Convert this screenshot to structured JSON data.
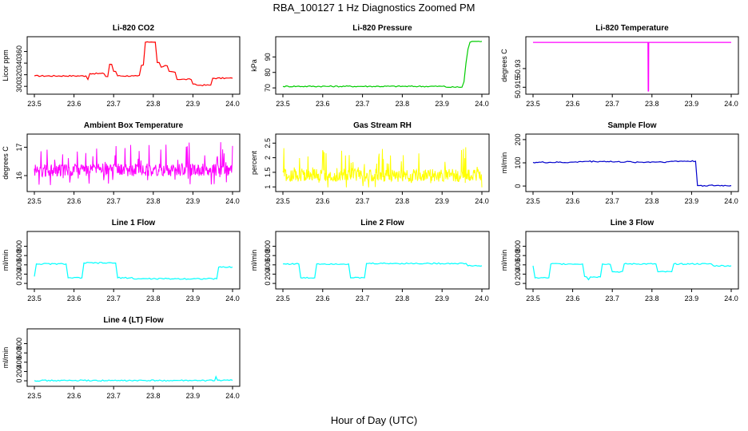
{
  "title": "RBA_100127  1 Hz Diagnostics Zoomed PM",
  "xlabel": "Hour of Day (UTC)",
  "colors": {
    "red": "#ff0000",
    "green": "#00cc00",
    "magenta": "#ff00ff",
    "yellow": "#ffff00",
    "blue": "#0000cc",
    "cyan": "#00ffff"
  },
  "chart_data": [
    {
      "type": "line",
      "title": "Li-820 CO2",
      "ylabel": "Licor ppm",
      "color": "red",
      "xlim": [
        23.5,
        24.0
      ],
      "xticks": [
        "23.5",
        "23.6",
        "23.7",
        "23.8",
        "23.9",
        "24.0"
      ],
      "ylim": [
        292,
        380
      ],
      "yticks": [
        300,
        320,
        340,
        360
      ],
      "x": [
        23.5,
        23.63,
        23.635,
        23.64,
        23.68,
        23.69,
        23.7,
        23.71,
        23.75,
        23.76,
        23.77,
        23.78,
        23.79,
        23.8,
        23.81,
        23.82,
        23.83,
        23.84,
        23.85,
        23.86,
        23.87,
        23.9,
        23.91,
        23.92,
        23.945,
        23.95,
        24.0
      ],
      "y": [
        318,
        318,
        312,
        322,
        317,
        338,
        326,
        318,
        318,
        318,
        336,
        376,
        376,
        376,
        341,
        333,
        336,
        326,
        325,
        312,
        312,
        304,
        302,
        302,
        302,
        314,
        314
      ]
    },
    {
      "type": "line",
      "title": "Li-820 Pressure",
      "ylabel": "kPa",
      "color": "green",
      "xlim": [
        23.5,
        24.0
      ],
      "xticks": [
        "23.5",
        "23.6",
        "23.7",
        "23.8",
        "23.9",
        "24.0"
      ],
      "ylim": [
        68,
        101
      ],
      "yticks": [
        70,
        80,
        90
      ],
      "x": [
        23.5,
        23.9,
        23.91,
        23.95,
        23.955,
        23.96,
        23.965,
        23.97,
        23.975,
        23.98,
        24.0
      ],
      "y": [
        71,
        71,
        70.5,
        70.5,
        74,
        86,
        95,
        99.5,
        100,
        100,
        100
      ]
    },
    {
      "type": "line",
      "title": "Li-820 Temperature",
      "ylabel": "degrees C",
      "color": "magenta",
      "xlim": [
        23.5,
        24.0
      ],
      "xticks": [
        "23.5",
        "23.6",
        "23.7",
        "23.8",
        "23.9",
        "24.0"
      ],
      "ylim": [
        50.912,
        50.953
      ],
      "yticks": [
        50.915,
        50.93
      ],
      "x": [
        23.5,
        23.79,
        23.7905,
        23.7915,
        23.792,
        24.0
      ],
      "y": [
        50.951,
        50.951,
        50.912,
        50.912,
        50.951,
        50.951
      ]
    },
    {
      "type": "line",
      "title": "Ambient Box Temperature",
      "ylabel": "degrees C",
      "color": "magenta",
      "xlim": [
        23.5,
        24.0
      ],
      "xticks": [
        "23.5",
        "23.6",
        "23.7",
        "23.8",
        "23.9",
        "24.0"
      ],
      "ylim": [
        15.55,
        17.35
      ],
      "yticks": [
        16.0,
        17.0
      ],
      "x": [
        23.5,
        23.55,
        23.6,
        23.65,
        23.7,
        23.75,
        23.8,
        23.85,
        23.9,
        23.95,
        24.0
      ],
      "y": [
        16.2,
        16.2,
        16.2,
        16.2,
        16.2,
        16.2,
        16.2,
        16.2,
        16.2,
        16.2,
        16.2
      ]
    },
    {
      "type": "line",
      "title": "Gas Stream RH",
      "ylabel": "percent",
      "color": "yellow",
      "xlim": [
        23.5,
        24.0
      ],
      "xticks": [
        "23.5",
        "23.6",
        "23.7",
        "23.8",
        "23.9",
        "24.0"
      ],
      "ylim": [
        0.95,
        2.7
      ],
      "yticks": [
        1.0,
        1.5,
        2.0,
        2.5
      ],
      "x": [
        23.5,
        23.55,
        23.6,
        23.65,
        23.7,
        23.75,
        23.8,
        23.85,
        23.9,
        23.95,
        24.0
      ],
      "y": [
        1.4,
        1.4,
        1.4,
        1.4,
        1.4,
        1.4,
        1.4,
        1.4,
        1.4,
        1.4,
        1.4
      ]
    },
    {
      "type": "line",
      "title": "Sample Flow",
      "ylabel": "ml/min",
      "color": "blue",
      "xlim": [
        23.5,
        24.0
      ],
      "xticks": [
        "23.5",
        "23.6",
        "23.7",
        "23.8",
        "23.9",
        "24.0"
      ],
      "ylim": [
        -10,
        210
      ],
      "yticks": [
        0,
        100,
        200
      ],
      "x": [
        23.5,
        23.6,
        23.62,
        23.7,
        23.75,
        23.8,
        23.85,
        23.91,
        23.915,
        23.92,
        24.0
      ],
      "y": [
        102,
        103,
        106,
        104,
        103,
        104,
        107,
        107,
        2,
        2,
        2
      ]
    },
    {
      "type": "line",
      "title": "Line 1 Flow",
      "ylabel": "ml/min",
      "color": "cyan",
      "xlim": [
        23.5,
        24.0
      ],
      "xticks": [
        "23.5",
        "23.6",
        "23.7",
        "23.8",
        "23.9",
        "24.0"
      ],
      "ylim": [
        -50,
        1050
      ],
      "yticks": [
        0,
        200,
        400,
        600,
        800
      ],
      "x": [
        23.5,
        23.505,
        23.58,
        23.585,
        23.62,
        23.625,
        23.705,
        23.71,
        23.75,
        23.96,
        23.965,
        24.0
      ],
      "y": [
        150,
        420,
        420,
        120,
        120,
        440,
        440,
        120,
        100,
        100,
        350,
        350
      ]
    },
    {
      "type": "line",
      "title": "Line 2 Flow",
      "ylabel": "ml/min",
      "color": "cyan",
      "xlim": [
        23.5,
        24.0
      ],
      "xticks": [
        "23.5",
        "23.6",
        "23.7",
        "23.8",
        "23.9",
        "24.0"
      ],
      "ylim": [
        -50,
        1050
      ],
      "yticks": [
        0,
        200,
        400,
        600,
        800
      ],
      "x": [
        23.5,
        23.54,
        23.545,
        23.58,
        23.585,
        23.665,
        23.67,
        23.705,
        23.71,
        23.96,
        23.965,
        24.0
      ],
      "y": [
        420,
        420,
        120,
        120,
        420,
        420,
        120,
        120,
        430,
        430,
        380,
        380
      ]
    },
    {
      "type": "line",
      "title": "Line 3 Flow",
      "ylabel": "ml/min",
      "color": "cyan",
      "xlim": [
        23.5,
        24.0
      ],
      "xticks": [
        "23.5",
        "23.6",
        "23.7",
        "23.8",
        "23.9",
        "24.0"
      ],
      "ylim": [
        -50,
        1050
      ],
      "yticks": [
        0,
        200,
        400,
        600,
        800
      ],
      "x": [
        23.5,
        23.505,
        23.54,
        23.545,
        23.625,
        23.63,
        23.64,
        23.645,
        23.67,
        23.675,
        23.69,
        23.7,
        23.73,
        23.81,
        23.815,
        23.85,
        23.855,
        23.95,
        23.955,
        24.0
      ],
      "y": [
        380,
        120,
        120,
        420,
        420,
        150,
        80,
        140,
        140,
        420,
        420,
        250,
        420,
        420,
        250,
        250,
        420,
        420,
        380,
        380
      ]
    },
    {
      "type": "line",
      "title": "Line 4 (LT) Flow",
      "ylabel": "ml/min",
      "color": "cyan",
      "xlim": [
        23.5,
        24.0
      ],
      "xticks": [
        "23.5",
        "23.6",
        "23.7",
        "23.8",
        "23.9",
        "24.0"
      ],
      "ylim": [
        -50,
        1050
      ],
      "yticks": [
        0,
        200,
        400,
        600,
        800
      ],
      "x": [
        23.5,
        23.7,
        23.9,
        23.955,
        23.958,
        23.962,
        24.0
      ],
      "y": [
        5,
        5,
        5,
        5,
        90,
        10,
        10
      ]
    }
  ]
}
